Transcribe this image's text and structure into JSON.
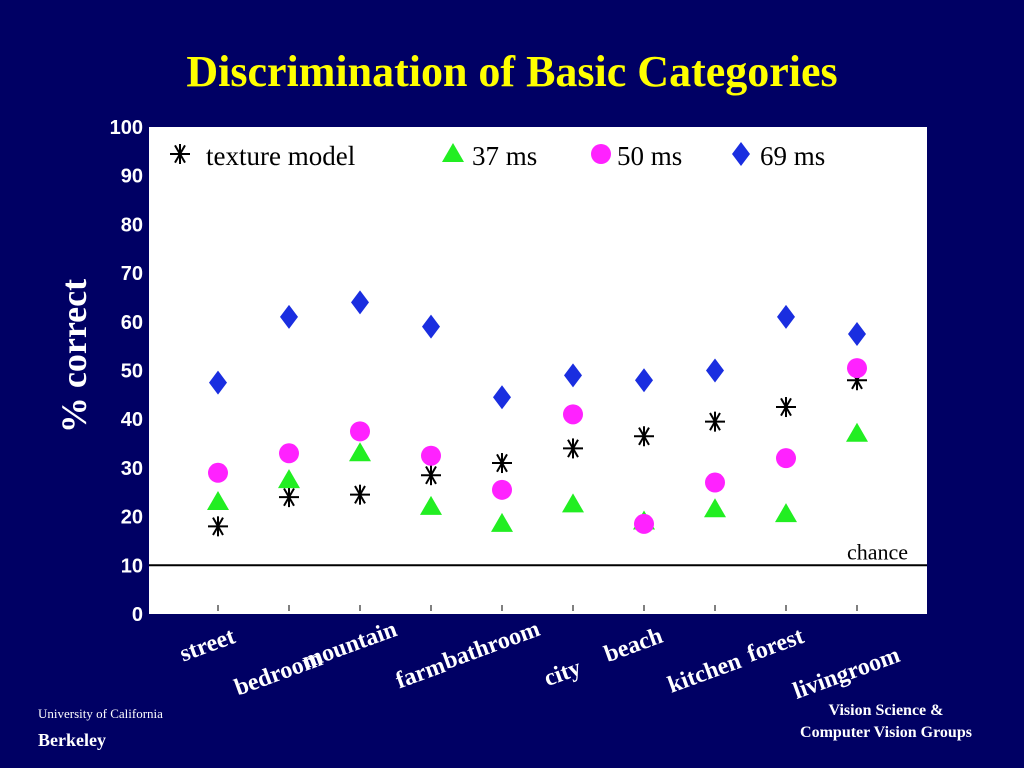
{
  "slide": {
    "title": "Discrimination of Basic Categories",
    "footer_left_line1": "University of California",
    "footer_left_line2": "Berkeley",
    "footer_right_line1": "Vision Science &",
    "footer_right_line2": "Computer Vision Groups"
  },
  "colors": {
    "background": "#000064",
    "title": "#ffff00",
    "texture_model": "#000000",
    "37ms": "#22ee22",
    "50ms": "#ff22ff",
    "69ms": "#1a2ee0"
  },
  "chart_data": {
    "type": "scatter",
    "title": "Discrimination of Basic Categories",
    "ylabel": "% correct",
    "xlabel": "",
    "ylim": [
      0,
      100
    ],
    "yticks": [
      0,
      10,
      20,
      30,
      40,
      50,
      60,
      70,
      80,
      90,
      100
    ],
    "categories": [
      "street",
      "bedroom",
      "mountain",
      "farm",
      "bathroom",
      "city",
      "beach",
      "kitchen",
      "forest",
      "livingroom"
    ],
    "series": [
      {
        "name": "texture model",
        "marker": "asterisk",
        "values": [
          18,
          24,
          24.5,
          28.5,
          31,
          34,
          36.5,
          39.5,
          42.5,
          48
        ]
      },
      {
        "name": "37 ms",
        "marker": "triangle",
        "values": [
          23,
          27.5,
          33,
          22,
          18.5,
          22.5,
          19,
          21.5,
          20.5,
          37
        ]
      },
      {
        "name": "50 ms",
        "marker": "circle",
        "values": [
          29,
          33,
          37.5,
          32.5,
          25.5,
          41,
          18.5,
          27,
          32,
          50.5
        ]
      },
      {
        "name": "69 ms",
        "marker": "diamond",
        "values": [
          47.5,
          61,
          64,
          59,
          44.5,
          49,
          48,
          50,
          61,
          57.5
        ]
      }
    ],
    "reference_line": {
      "label": "chance",
      "value": 10
    },
    "legend_position": "top"
  }
}
